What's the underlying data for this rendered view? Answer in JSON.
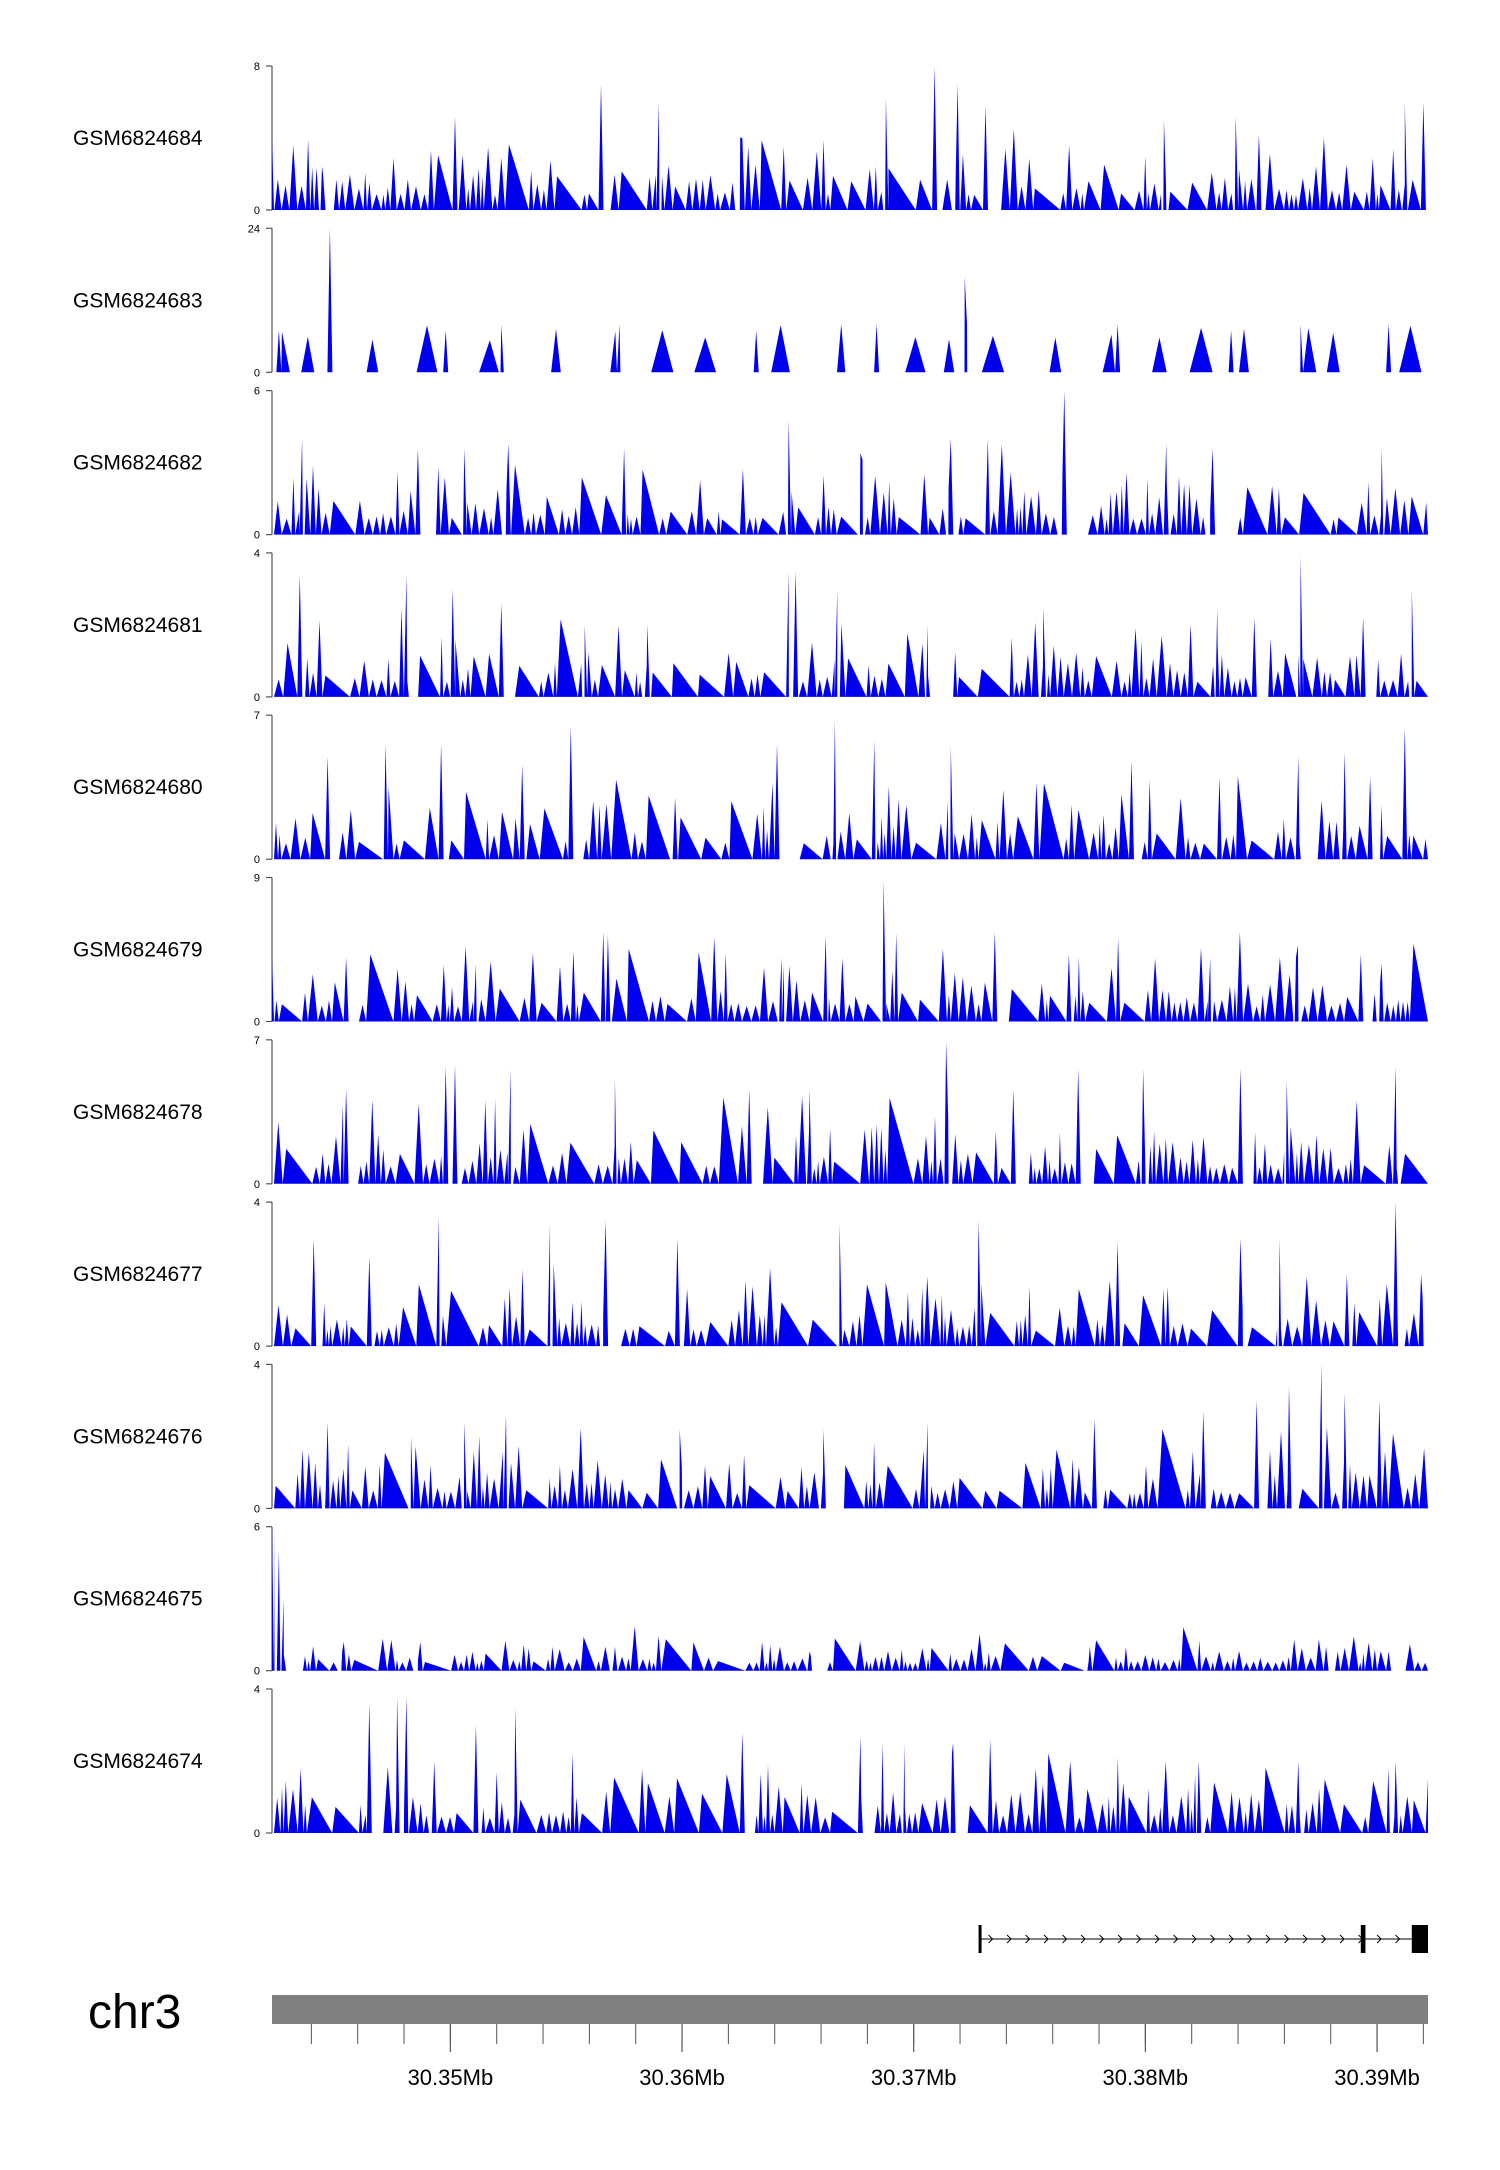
{
  "chart_data": {
    "type": "area",
    "colors": {
      "signal": "#0000ee",
      "axis": "#555555",
      "ideogram": "#808080",
      "gene": "#000000"
    },
    "region": {
      "chrom": "chr3",
      "start": 30.3423,
      "end": 30.3922,
      "unit": "Mb"
    },
    "tracks": [
      {
        "name": "GSM6824684",
        "ymax": "8",
        "ymin": "0",
        "ylim": [
          0,
          8
        ],
        "peaks": [
          [
            30.3423,
            4
          ],
          [
            30.3445,
            2
          ],
          [
            30.3502,
            5.2
          ],
          [
            30.3565,
            7
          ],
          [
            30.359,
            6
          ],
          [
            30.3626,
            4
          ],
          [
            30.3688,
            6.2
          ],
          [
            30.3709,
            8
          ],
          [
            30.3719,
            7
          ],
          [
            30.3731,
            5.8
          ],
          [
            30.3808,
            5
          ],
          [
            30.3839,
            5.2
          ],
          [
            30.3849,
            4.2
          ],
          [
            30.3912,
            6
          ],
          [
            30.392,
            6
          ]
        ]
      },
      {
        "name": "GSM6824683",
        "ymax": "24",
        "ymin": "0",
        "ylim": [
          0,
          24
        ],
        "peaks": [
          [
            30.3426,
            7
          ],
          [
            30.3448,
            24
          ],
          [
            30.3498,
            7
          ],
          [
            30.3522,
            8
          ],
          [
            30.3573,
            8
          ],
          [
            30.3632,
            7
          ],
          [
            30.3684,
            8
          ],
          [
            30.3722,
            16
          ],
          [
            30.3723,
            8
          ],
          [
            30.3788,
            8
          ],
          [
            30.3837,
            7
          ],
          [
            30.3867,
            8
          ],
          [
            30.3905,
            8
          ]
        ]
      },
      {
        "name": "GSM6824682",
        "ymax": "6",
        "ymin": "0",
        "ylim": [
          0,
          6
        ],
        "peaks": [
          [
            30.3436,
            4
          ],
          [
            30.3486,
            3.6
          ],
          [
            30.3506,
            3.6
          ],
          [
            30.3525,
            3.8
          ],
          [
            30.3575,
            3.6
          ],
          [
            30.3646,
            4.8
          ],
          [
            30.3677,
            3.4
          ],
          [
            30.3716,
            4
          ],
          [
            30.3732,
            4
          ],
          [
            30.3765,
            6
          ],
          [
            30.3809,
            3.8
          ],
          [
            30.3829,
            3.6
          ],
          [
            30.3902,
            3.6
          ]
        ]
      },
      {
        "name": "GSM6824681",
        "ymax": "4",
        "ymin": "0",
        "ylim": [
          0,
          4
        ],
        "peaks": [
          [
            30.3435,
            3.4
          ],
          [
            30.3481,
            3.4
          ],
          [
            30.3501,
            3
          ],
          [
            30.3522,
            2.6
          ],
          [
            30.3558,
            2
          ],
          [
            30.3585,
            2
          ],
          [
            30.3646,
            3.5
          ],
          [
            30.3649,
            3.5
          ],
          [
            30.3667,
            3
          ],
          [
            30.3706,
            2
          ],
          [
            30.3756,
            2.5
          ],
          [
            30.3831,
            2.5
          ],
          [
            30.3847,
            2.2
          ],
          [
            30.3867,
            3.9
          ],
          [
            30.3894,
            2.2
          ],
          [
            30.3915,
            3
          ]
        ]
      },
      {
        "name": "GSM6824680",
        "ymax": "7",
        "ymin": "0",
        "ylim": [
          0,
          7
        ],
        "peaks": [
          [
            30.3447,
            5
          ],
          [
            30.3472,
            5.6
          ],
          [
            30.3496,
            5.6
          ],
          [
            30.3531,
            4.6
          ],
          [
            30.3552,
            6.5
          ],
          [
            30.3597,
            3
          ],
          [
            30.3641,
            5.6
          ],
          [
            30.3666,
            6.8
          ],
          [
            30.3683,
            5.8
          ],
          [
            30.3716,
            5.5
          ],
          [
            30.3794,
            4.8
          ],
          [
            30.3832,
            4
          ],
          [
            30.3866,
            5
          ],
          [
            30.3886,
            5.2
          ],
          [
            30.3897,
            4
          ],
          [
            30.3912,
            6.4
          ]
        ]
      },
      {
        "name": "GSM6824679",
        "ymax": "9",
        "ymin": "0",
        "ylim": [
          0,
          9
        ],
        "peaks": [
          [
            30.3423,
            4
          ],
          [
            30.3455,
            4
          ],
          [
            30.3511,
            3.6
          ],
          [
            30.3566,
            5.6
          ],
          [
            30.3568,
            5.4
          ],
          [
            30.3643,
            4
          ],
          [
            30.3662,
            5.4
          ],
          [
            30.3687,
            8.8
          ],
          [
            30.3735,
            5.6
          ],
          [
            30.3767,
            4.2
          ],
          [
            30.3828,
            4
          ],
          [
            30.3865,
            4
          ],
          [
            30.3893,
            4.2
          ],
          [
            30.3902,
            3.6
          ]
        ]
      },
      {
        "name": "GSM6824678",
        "ymax": "7",
        "ymin": "0",
        "ylim": [
          0,
          7
        ],
        "peaks": [
          [
            30.3455,
            4.6
          ],
          [
            30.3498,
            5.7
          ],
          [
            30.3502,
            5.8
          ],
          [
            30.3526,
            5.6
          ],
          [
            30.3571,
            5.2
          ],
          [
            30.3629,
            4.6
          ],
          [
            30.3655,
            4.6
          ],
          [
            30.3714,
            6.9
          ],
          [
            30.3743,
            4.6
          ],
          [
            30.3771,
            5.6
          ],
          [
            30.3799,
            5.6
          ],
          [
            30.3841,
            5.6
          ],
          [
            30.3861,
            5
          ],
          [
            30.3908,
            5.7
          ]
        ]
      },
      {
        "name": "GSM6824677",
        "ymax": "4",
        "ymin": "0",
        "ylim": [
          0,
          4
        ],
        "peaks": [
          [
            30.3441,
            3
          ],
          [
            30.3465,
            2.5
          ],
          [
            30.3495,
            3.6
          ],
          [
            30.3543,
            3.4
          ],
          [
            30.3567,
            3.5
          ],
          [
            30.3598,
            3
          ],
          [
            30.3668,
            3.4
          ],
          [
            30.3728,
            3.5
          ],
          [
            30.3788,
            2.9
          ],
          [
            30.3841,
            3
          ],
          [
            30.3858,
            3
          ],
          [
            30.3887,
            2
          ],
          [
            30.3908,
            4
          ],
          [
            30.3919,
            2
          ]
        ]
      },
      {
        "name": "GSM6824676",
        "ymax": "4",
        "ymin": "0",
        "ylim": [
          0,
          4
        ],
        "peaks": [
          [
            30.3447,
            2.4
          ],
          [
            30.3483,
            2
          ],
          [
            30.3506,
            2.4
          ],
          [
            30.3524,
            2.6
          ],
          [
            30.3599,
            2.2
          ],
          [
            30.3661,
            2.2
          ],
          [
            30.3706,
            2.4
          ],
          [
            30.3778,
            2.5
          ],
          [
            30.3825,
            2.7
          ],
          [
            30.3848,
            3
          ],
          [
            30.3862,
            3.4
          ],
          [
            30.3876,
            4
          ],
          [
            30.3886,
            3.2
          ],
          [
            30.3901,
            3
          ],
          [
            30.3923,
            0.4
          ]
        ]
      },
      {
        "name": "GSM6824675",
        "ymax": "6",
        "ymin": "0",
        "ylim": [
          0,
          6
        ],
        "peaks": [
          [
            30.3423,
            6
          ],
          [
            30.3424,
            6
          ],
          [
            30.3426,
            5
          ],
          [
            30.3428,
            3
          ],
          [
            30.3454,
            1.2
          ],
          [
            30.3487,
            1.2
          ],
          [
            30.3571,
            1
          ],
          [
            30.3655,
            0.8
          ],
          [
            30.3776,
            1
          ],
          [
            30.3878,
            1
          ],
          [
            30.3905,
            0.8
          ]
        ]
      },
      {
        "name": "GSM6824674",
        "ymax": "4",
        "ymin": "0",
        "ylim": [
          0,
          4
        ],
        "peaks": [
          [
            30.3465,
            3.6
          ],
          [
            30.3477,
            3.8
          ],
          [
            30.3481,
            3.8
          ],
          [
            30.3493,
            2
          ],
          [
            30.3511,
            3
          ],
          [
            30.3528,
            3.5
          ],
          [
            30.3626,
            2.8
          ],
          [
            30.3677,
            2.7
          ],
          [
            30.3696,
            2.5
          ],
          [
            30.3717,
            2.5
          ],
          [
            30.3733,
            2.6
          ],
          [
            30.3823,
            2
          ],
          [
            30.3866,
            2
          ],
          [
            30.3908,
            2
          ],
          [
            30.3922,
            1.5
          ]
        ]
      }
    ],
    "gene": {
      "strand": "+",
      "start": 30.3728,
      "end": 30.3922,
      "exons": [
        [
          30.3728,
          30.3729
        ],
        [
          30.3893,
          30.3895
        ],
        [
          30.3915,
          30.3922
        ]
      ]
    },
    "ideogram": {
      "label": "chr3"
    },
    "axis": {
      "major_ticks": [
        {
          "pos": 30.35,
          "label": "30.35Mb"
        },
        {
          "pos": 30.36,
          "label": "30.36Mb"
        },
        {
          "pos": 30.37,
          "label": "30.37Mb"
        },
        {
          "pos": 30.38,
          "label": "30.38Mb"
        },
        {
          "pos": 30.39,
          "label": "30.39Mb"
        }
      ],
      "minor_tick_step": 0.002
    }
  }
}
